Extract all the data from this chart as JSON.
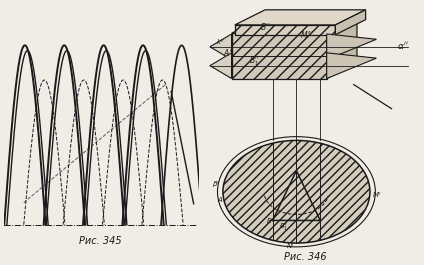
{
  "fig_width": 4.24,
  "fig_height": 2.65,
  "dpi": 100,
  "bg_color": "#f0ede6",
  "line_color": "#1a1a1a",
  "caption1": "Рис. 345",
  "caption2": "Рис. 346",
  "caption_fontsize": 7.0
}
